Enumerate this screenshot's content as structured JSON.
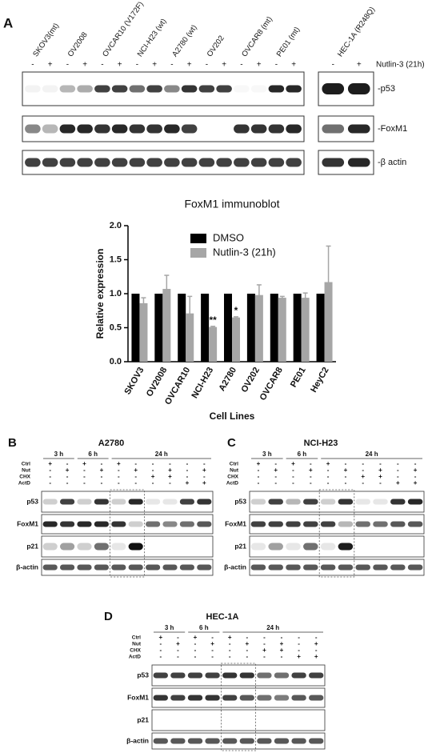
{
  "panel_a": {
    "label": "A",
    "lanes": [
      "SKOV3(mt)",
      "OV2008",
      "OVCAR10 (V172F)",
      "NCI-H23 (wt)",
      "A2780 (wt)",
      "OV202",
      "OVCAR8 (mt)",
      "PE01 (mt)"
    ],
    "extra_lane": "HEC-1A (R248Q)",
    "treatment_signs": [
      "-",
      "+"
    ],
    "treatment": "Nutlin-3 (21h)",
    "blots": [
      "-p53",
      "-FoxM1",
      "-β actin"
    ]
  },
  "chart_data": {
    "type": "bar",
    "title": "FoxM1 immunoblot",
    "x_label": "Cell Lines",
    "y_label": "Relative expression",
    "categories": [
      "SKOV3",
      "OV2008",
      "OVCAR10",
      "NCI-H23",
      "A2780",
      "OV202",
      "OVCAR8",
      "PE01",
      "HeyC2"
    ],
    "series": [
      {
        "name": "DMSO",
        "color": "#000000",
        "values": [
          1,
          1,
          1,
          1,
          1,
          1,
          1,
          1,
          1
        ]
      },
      {
        "name": "Nutlin-3 (21h)",
        "color": "#a6a6a6",
        "values": [
          0.86,
          1.07,
          0.71,
          0.51,
          0.65,
          0.98,
          0.94,
          0.94,
          1.17
        ],
        "errors": [
          0.08,
          0.2,
          0.25,
          0.01,
          0.01,
          0.15,
          0.02,
          0.07,
          0.53
        ],
        "value_labels": [
          null,
          null,
          null,
          "**",
          "*",
          null,
          null,
          null,
          null
        ]
      }
    ],
    "ylim": [
      0,
      2
    ],
    "yticks": [
      {
        "value": 0,
        "label": "0.0"
      },
      {
        "value": 0.5,
        "label": "0.5"
      },
      {
        "value": 1,
        "label": "1.0"
      },
      {
        "value": 1.5,
        "label": "1.5"
      },
      {
        "value": 2,
        "label": "2.0"
      }
    ],
    "grid": false,
    "legend": "top"
  },
  "panel_b": {
    "label": "B",
    "title": "A2780",
    "times": [
      "3 h",
      "6 h",
      "24 h"
    ],
    "conditions": [
      "Ctrl",
      "Nut",
      "CHX",
      "ActD"
    ],
    "signs": [
      [
        "+",
        "-",
        "+",
        "-",
        "+",
        "-",
        "-",
        "-",
        "-",
        "-"
      ],
      [
        "-",
        "+",
        "-",
        "+",
        "-",
        "+",
        "-",
        "+",
        "-",
        "+"
      ],
      [
        "-",
        "-",
        "-",
        "-",
        "-",
        "-",
        "+",
        "+",
        "-",
        "-"
      ],
      [
        "-",
        "-",
        "-",
        "-",
        "-",
        "-",
        "-",
        "-",
        "+",
        "+"
      ]
    ],
    "blots": [
      "p53",
      "FoxM1",
      "p21",
      "β-actin"
    ]
  },
  "panel_c": {
    "label": "C",
    "title": "NCI-H23",
    "times": [
      "3 h",
      "6 h",
      "24 h"
    ],
    "conditions": [
      "Ctrl",
      "Nut",
      "CHX",
      "ActD"
    ],
    "signs": [
      [
        "+",
        "-",
        "+",
        "-",
        "+",
        "-",
        "-",
        "-",
        "-",
        "-"
      ],
      [
        "-",
        "+",
        "-",
        "+",
        "-",
        "+",
        "-",
        "+",
        "-",
        "+"
      ],
      [
        "-",
        "-",
        "-",
        "-",
        "-",
        "-",
        "+",
        "+",
        "-",
        "-"
      ],
      [
        "-",
        "-",
        "-",
        "-",
        "-",
        "-",
        "-",
        "-",
        "+",
        "+"
      ]
    ],
    "blots": [
      "p53",
      "FoxM1",
      "p21",
      "β-actin"
    ]
  },
  "panel_d": {
    "label": "D",
    "title": "HEC-1A",
    "times": [
      "3 h",
      "6 h",
      "24 h"
    ],
    "conditions": [
      "Ctrl",
      "Nut",
      "CHX",
      "ActD"
    ],
    "signs": [
      [
        "+",
        "-",
        "+",
        "-",
        "+",
        "-",
        "-",
        "-",
        "-",
        "-"
      ],
      [
        "-",
        "+",
        "-",
        "+",
        "-",
        "+",
        "-",
        "+",
        "-",
        "+"
      ],
      [
        "-",
        "-",
        "-",
        "-",
        "-",
        "-",
        "+",
        "+",
        "-",
        "-"
      ],
      [
        "-",
        "-",
        "-",
        "-",
        "-",
        "-",
        "-",
        "-",
        "+",
        "+"
      ]
    ],
    "blots": [
      "p53",
      "FoxM1",
      "p21",
      "β-actin"
    ]
  }
}
